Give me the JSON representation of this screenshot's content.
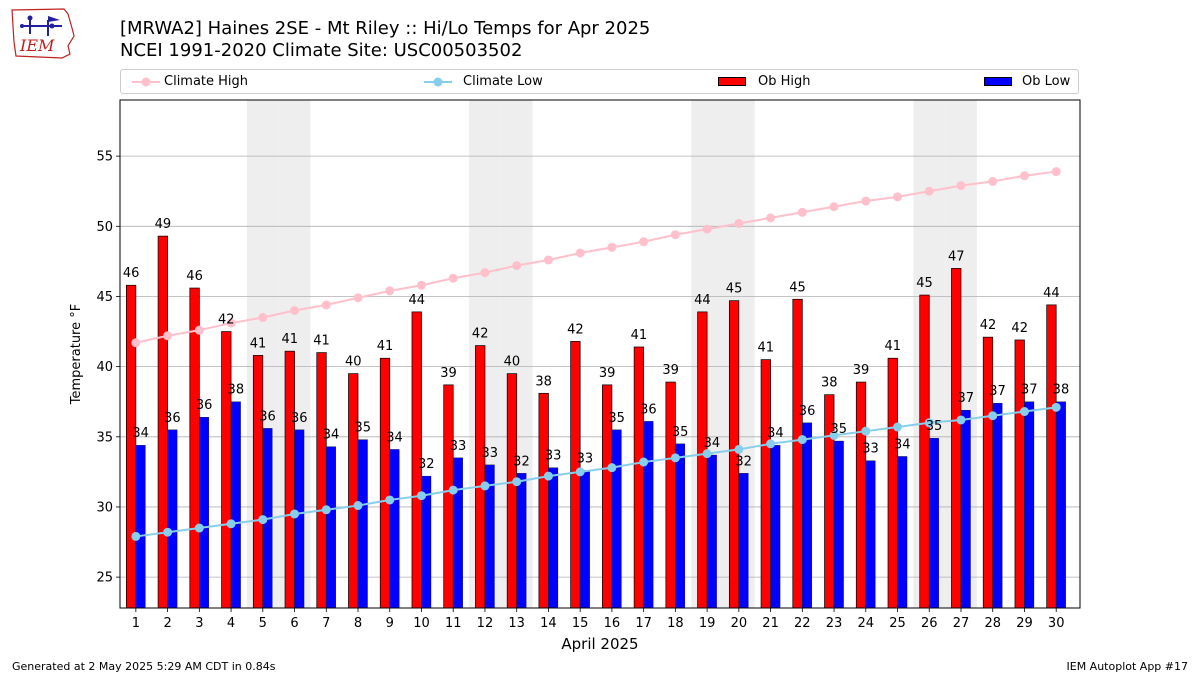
{
  "logo": {
    "text": "IEM",
    "icon": "iem-logo-icon"
  },
  "title": {
    "line1": "[MRWA2] Haines 2SE - Mt Riley :: Hi/Lo Temps for Apr 2025",
    "line2": "NCEI 1991-2020 Climate Site: USC00503502"
  },
  "legend": {
    "climate_high": "Climate High",
    "climate_low": "Climate Low",
    "ob_high": "Ob High",
    "ob_low": "Ob Low"
  },
  "colors": {
    "climate_high": "#ffc0cb",
    "climate_low": "#87ceeb",
    "ob_high": "#ff0000",
    "ob_low": "#0000ff",
    "weekend_band": "#eeeeee",
    "grid": "#b0b0b0"
  },
  "chart_data": {
    "type": "bar",
    "title": "[MRWA2] Haines 2SE - Mt Riley :: Hi/Lo Temps for Apr 2025",
    "subtitle": "NCEI 1991-2020 Climate Site: USC00503502",
    "xlabel": "April 2025",
    "ylabel": "Temperature °F",
    "ylim": [
      22.8,
      59
    ],
    "yticks": [
      25,
      30,
      35,
      40,
      45,
      50,
      55
    ],
    "grid": "horizontal",
    "legend_position": "top",
    "categories": [
      "1",
      "2",
      "3",
      "4",
      "5",
      "6",
      "7",
      "8",
      "9",
      "10",
      "11",
      "12",
      "13",
      "14",
      "15",
      "16",
      "17",
      "18",
      "19",
      "20",
      "21",
      "22",
      "23",
      "24",
      "25",
      "26",
      "27",
      "28",
      "29",
      "30"
    ],
    "weekend_days": [
      5,
      6,
      12,
      13,
      19,
      20,
      26,
      27
    ],
    "series": [
      {
        "name": "Ob High",
        "kind": "bar",
        "values": [
          45.8,
          49.3,
          45.6,
          42.5,
          40.8,
          41.1,
          41.0,
          39.5,
          40.6,
          43.9,
          38.7,
          41.5,
          39.5,
          38.1,
          41.8,
          38.7,
          41.4,
          38.9,
          43.9,
          44.7,
          40.5,
          44.8,
          38.0,
          38.9,
          40.6,
          45.1,
          47.0,
          42.1,
          41.9,
          44.4
        ],
        "labels": [
          "46",
          "49",
          "46",
          "42",
          "41",
          "41",
          "41",
          "40",
          "41",
          "44",
          "39",
          "42",
          "40",
          "38",
          "42",
          "39",
          "41",
          "39",
          "44",
          "45",
          "41",
          "45",
          "38",
          "39",
          "41",
          "45",
          "47",
          "42",
          "42",
          "44"
        ]
      },
      {
        "name": "Ob Low",
        "kind": "bar",
        "values": [
          34.4,
          35.5,
          36.4,
          37.5,
          35.6,
          35.5,
          34.3,
          34.8,
          34.1,
          32.2,
          33.5,
          33.0,
          32.4,
          32.8,
          32.6,
          35.5,
          36.1,
          34.5,
          33.7,
          32.4,
          34.4,
          36.0,
          34.7,
          33.3,
          33.6,
          34.9,
          36.9,
          37.4,
          37.5,
          37.5
        ],
        "labels": [
          "34",
          "36",
          "36",
          "38",
          "36",
          "36",
          "34",
          "35",
          "34",
          "32",
          "33",
          "33",
          "32",
          "33",
          "33",
          "35",
          "36",
          "35",
          "34",
          "32",
          "34",
          "36",
          "35",
          "33",
          "34",
          "35",
          "37",
          "37",
          "37",
          "38"
        ]
      },
      {
        "name": "Climate High",
        "kind": "line",
        "values": [
          41.7,
          42.2,
          42.6,
          43.1,
          43.5,
          44.0,
          44.4,
          44.9,
          45.4,
          45.8,
          46.3,
          46.7,
          47.2,
          47.6,
          48.1,
          48.5,
          48.9,
          49.4,
          49.8,
          50.2,
          50.6,
          51.0,
          51.4,
          51.8,
          52.1,
          52.5,
          52.9,
          53.2,
          53.6,
          53.9
        ]
      },
      {
        "name": "Climate Low",
        "kind": "line",
        "values": [
          27.9,
          28.2,
          28.5,
          28.8,
          29.1,
          29.5,
          29.8,
          30.1,
          30.5,
          30.8,
          31.2,
          31.5,
          31.8,
          32.2,
          32.5,
          32.8,
          33.2,
          33.5,
          33.8,
          34.1,
          34.5,
          34.8,
          35.1,
          35.4,
          35.7,
          36.0,
          36.2,
          36.5,
          36.8,
          37.1
        ]
      }
    ]
  },
  "footer": {
    "left": "Generated at 2 May 2025 5:29 AM CDT in 0.84s",
    "right": "IEM Autoplot App #17"
  }
}
